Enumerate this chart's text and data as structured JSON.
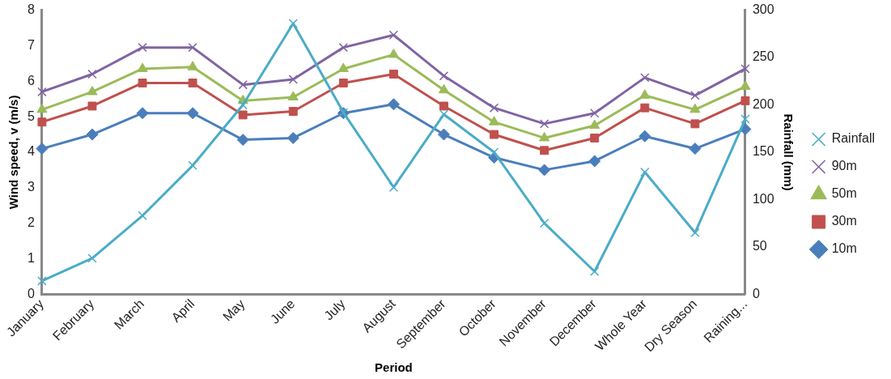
{
  "chart_data": {
    "type": "line",
    "categories": [
      "January",
      "February",
      "March",
      "April",
      "May",
      "June",
      "July",
      "August",
      "September",
      "October",
      "November",
      "December",
      "Whole Year",
      "Dry Season",
      "Raining..."
    ],
    "xlabel": "Period",
    "ylabel": "Wind speed, v (m/s)",
    "y2label": "Rainfall (mm)",
    "ylim": [
      0,
      8
    ],
    "yticks": [
      0,
      1,
      2,
      3,
      4,
      5,
      6,
      7,
      8
    ],
    "y2lim": [
      0,
      300
    ],
    "y2ticks": [
      0,
      50,
      100,
      150,
      200,
      250,
      300
    ],
    "grid": false,
    "legend": "right",
    "series": [
      {
        "name": "10m",
        "color": "#4a7ebb",
        "marker": "diamond",
        "values": [
          4.1,
          4.5,
          5.1,
          5.1,
          4.35,
          4.4,
          5.1,
          5.35,
          4.5,
          3.85,
          3.5,
          3.75,
          4.45,
          4.1,
          4.65
        ]
      },
      {
        "name": "30m",
        "color": "#c0504d",
        "marker": "square",
        "values": [
          4.85,
          5.3,
          5.95,
          5.95,
          5.05,
          5.15,
          5.95,
          6.2,
          5.3,
          4.5,
          4.05,
          4.4,
          5.25,
          4.8,
          5.45
        ]
      },
      {
        "name": "50m",
        "color": "#9bbb59",
        "marker": "triangle",
        "values": [
          5.2,
          5.7,
          6.35,
          6.4,
          5.45,
          5.55,
          6.35,
          6.75,
          5.75,
          4.85,
          4.4,
          4.75,
          5.6,
          5.2,
          5.85
        ]
      },
      {
        "name": "90m",
        "color": "#8064a2",
        "marker": "cross",
        "values": [
          5.7,
          6.2,
          6.95,
          6.95,
          5.9,
          6.05,
          6.95,
          7.3,
          6.15,
          5.25,
          4.8,
          5.1,
          6.1,
          5.6,
          6.35
        ]
      },
      {
        "name": "Rainfall",
        "color": "#4bacc6",
        "marker": "cross",
        "axis": "y2",
        "values": [
          14,
          38,
          83,
          136,
          200,
          286,
          192,
          113,
          190,
          150,
          75,
          24,
          129,
          65,
          185
        ]
      }
    ]
  }
}
